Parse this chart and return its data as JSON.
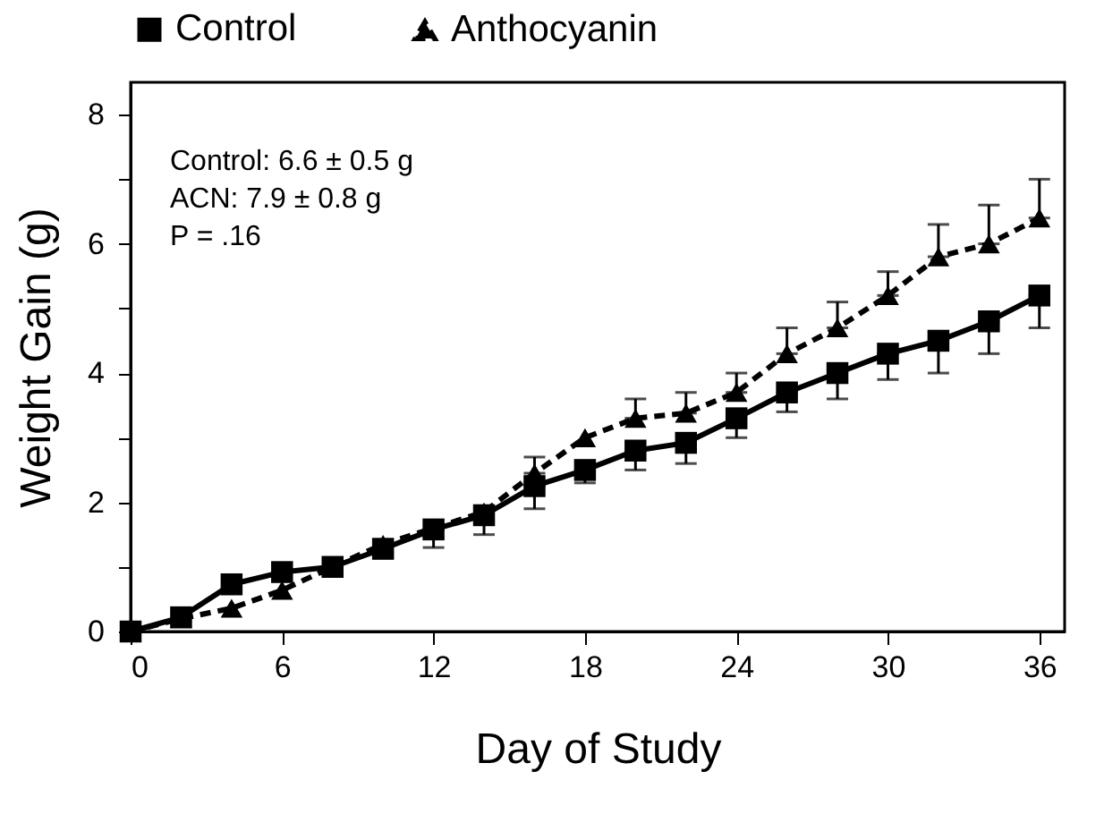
{
  "chart_data": {
    "type": "line",
    "xlabel": "Day of Study",
    "ylabel": "Weight Gain (g)",
    "x": [
      0,
      2,
      4,
      6,
      8,
      10,
      12,
      14,
      16,
      18,
      20,
      22,
      24,
      26,
      28,
      30,
      32,
      34,
      36
    ],
    "series": [
      {
        "name": "Control",
        "color": "#000000",
        "marker": "square",
        "line_style": "solid",
        "values": [
          0,
          0.22,
          0.73,
          0.92,
          1.0,
          1.28,
          1.58,
          1.8,
          2.25,
          2.5,
          2.8,
          2.92,
          3.3,
          3.7,
          4.0,
          4.3,
          4.5,
          4.8,
          5.2
        ],
        "errors": [
          null,
          null,
          null,
          null,
          null,
          null,
          [
            1.3,
            1.58
          ],
          [
            1.5,
            1.8
          ],
          [
            1.9,
            2.25
          ],
          [
            2.3,
            2.5
          ],
          [
            2.5,
            2.8
          ],
          [
            2.6,
            2.92
          ],
          [
            3.0,
            3.3
          ],
          [
            3.4,
            3.7
          ],
          [
            3.6,
            4.0
          ],
          [
            3.9,
            4.3
          ],
          [
            4.0,
            4.5
          ],
          [
            4.3,
            4.8
          ],
          [
            4.7,
            5.2
          ]
        ]
      },
      {
        "name": "Anthocyanin",
        "color": "#000000",
        "marker": "triangle",
        "line_style": "dashed",
        "values": [
          0,
          0.2,
          0.36,
          0.64,
          1.0,
          1.35,
          1.6,
          1.85,
          2.45,
          3.0,
          3.3,
          3.38,
          3.7,
          4.3,
          4.7,
          5.2,
          5.8,
          6.0,
          6.4
        ],
        "errors": [
          null,
          null,
          null,
          null,
          null,
          null,
          null,
          null,
          [
            2.45,
            2.7
          ],
          null,
          [
            3.3,
            3.6
          ],
          [
            3.38,
            3.7
          ],
          [
            3.7,
            4.0
          ],
          [
            4.3,
            4.7
          ],
          [
            4.7,
            5.1
          ],
          [
            5.2,
            5.57
          ],
          [
            5.8,
            6.3
          ],
          [
            6.0,
            6.6
          ],
          [
            6.4,
            7.0
          ]
        ]
      }
    ],
    "xlim": [
      0,
      37
    ],
    "xticks": [
      0,
      6,
      12,
      18,
      24,
      30,
      36
    ],
    "ylim": [
      0,
      8.5
    ],
    "yticks": [
      0,
      {
        "value": 1,
        "label": null
      },
      2,
      {
        "value": 3,
        "label": null
      },
      4,
      {
        "value": 5,
        "label": null
      },
      6,
      {
        "value": 7,
        "label": null
      },
      8
    ],
    "annotations": [
      "Control: 6.6 ± 0.5 g",
      "ACN: 7.9 ± 0.8 g",
      "P = .16"
    ],
    "legend": "top",
    "grid": false
  }
}
